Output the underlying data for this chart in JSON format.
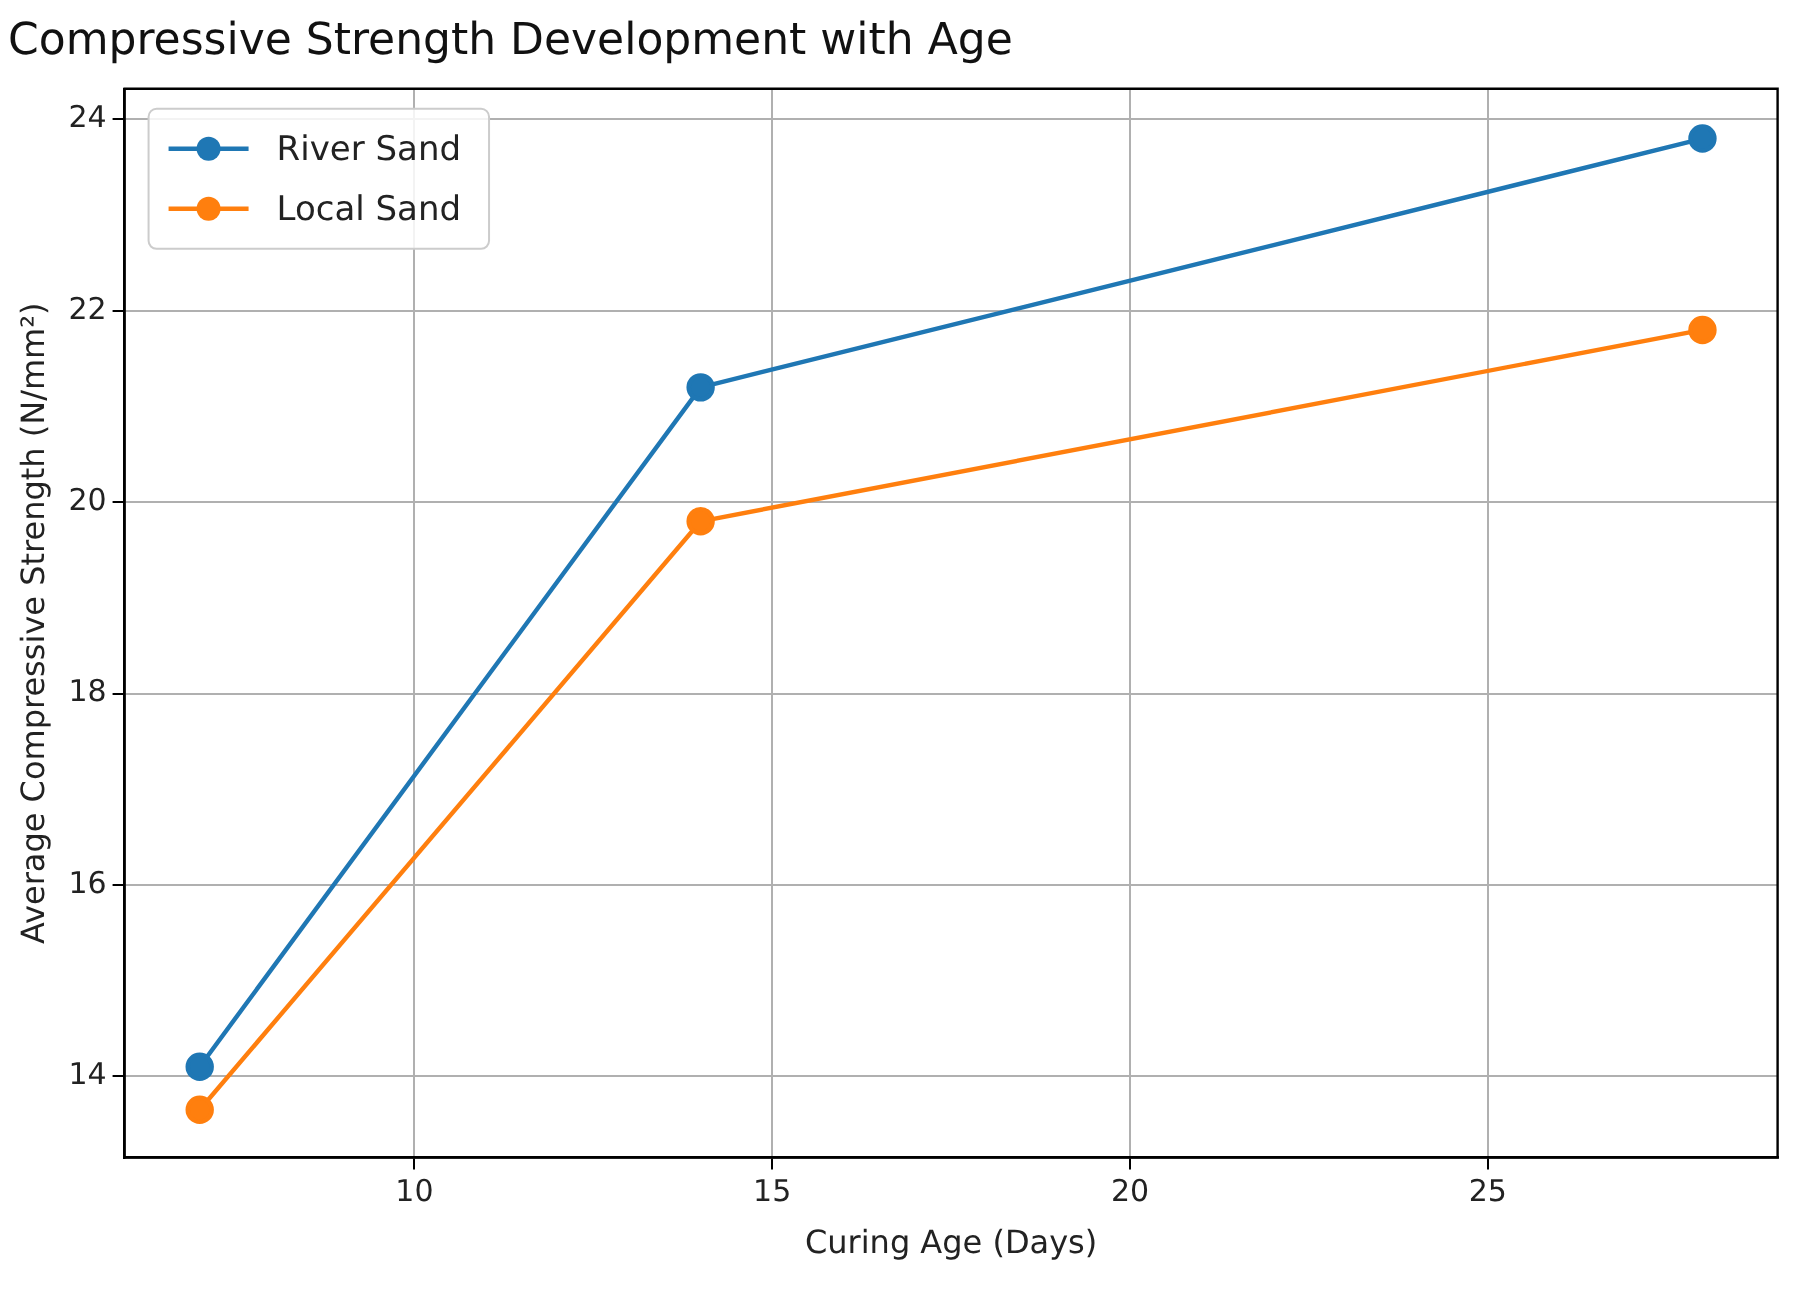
{
  "chart_data": {
    "type": "line",
    "title": "Compressive Strength Development with Age",
    "xlabel": "Curing Age (Days)",
    "ylabel": "Average Compressive Strength (N/mm²)",
    "x": [
      7,
      14,
      28
    ],
    "series": [
      {
        "name": "River Sand",
        "color": "#1f77b4",
        "values": [
          14.1,
          21.2,
          23.8
        ]
      },
      {
        "name": "Local Sand",
        "color": "#ff7f0e",
        "values": [
          13.65,
          19.8,
          21.8
        ]
      }
    ],
    "xlim": [
      5.95,
      29.05
    ],
    "xticks": [
      10,
      15,
      20,
      25
    ],
    "ylim": [
      13.15,
      24.32
    ],
    "yticks": [
      14,
      16,
      18,
      20,
      22,
      24
    ],
    "grid": true,
    "legend": "top left",
    "marker": "circle",
    "line_style": "solid"
  }
}
